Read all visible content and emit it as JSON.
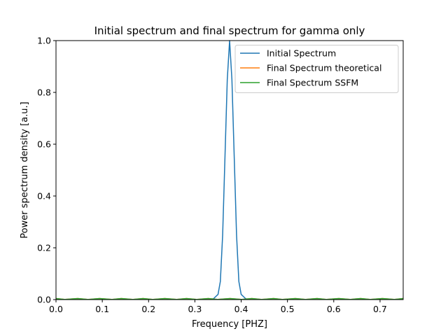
{
  "chart_data": {
    "type": "line",
    "title": "Initial spectrum and final spectrum for gamma only",
    "xlabel": "Frequency [PHZ]",
    "ylabel": "Power spectrum density [a.u.]",
    "xlim": [
      0.0,
      0.75
    ],
    "ylim": [
      0.0,
      1.0
    ],
    "xticks": [
      "0.0",
      "0.1",
      "0.2",
      "0.3",
      "0.4",
      "0.5",
      "0.6",
      "0.7"
    ],
    "yticks": [
      "0.0",
      "0.2",
      "0.4",
      "0.6",
      "0.8",
      "1.0"
    ],
    "grid": false,
    "legend_position": "top-right",
    "series": [
      {
        "name": "Initial Spectrum",
        "color": "#1f77b4",
        "x": [
          0.0,
          0.3,
          0.33,
          0.34,
          0.35,
          0.355,
          0.36,
          0.365,
          0.37,
          0.375,
          0.38,
          0.385,
          0.39,
          0.395,
          0.4,
          0.41,
          0.42,
          0.45,
          0.75
        ],
        "y": [
          0.0,
          0.0,
          0.0,
          0.003,
          0.02,
          0.07,
          0.25,
          0.55,
          0.85,
          1.0,
          0.85,
          0.55,
          0.25,
          0.07,
          0.02,
          0.003,
          0.0,
          0.0,
          0.0
        ]
      },
      {
        "name": "Final Spectrum theoretical",
        "color": "#ff7f0e",
        "x": [
          0.0,
          0.02,
          0.047,
          0.07,
          0.094,
          0.12,
          0.141,
          0.165,
          0.188,
          0.21,
          0.235,
          0.26,
          0.282,
          0.305,
          0.329,
          0.35,
          0.376,
          0.4,
          0.423,
          0.445,
          0.47,
          0.49,
          0.517,
          0.54,
          0.564,
          0.585,
          0.611,
          0.635,
          0.658,
          0.68,
          0.705,
          0.73,
          0.75
        ],
        "y": [
          0.004,
          0.0005,
          0.004,
          0.0005,
          0.004,
          0.0005,
          0.004,
          0.0005,
          0.004,
          0.0005,
          0.004,
          0.0005,
          0.004,
          0.0005,
          0.004,
          0.0005,
          0.004,
          0.0005,
          0.004,
          0.0005,
          0.004,
          0.0005,
          0.004,
          0.0005,
          0.004,
          0.0005,
          0.004,
          0.0005,
          0.004,
          0.0005,
          0.004,
          0.0005,
          0.004
        ]
      },
      {
        "name": "Final Spectrum SSFM",
        "color": "#2ca02c",
        "x": [
          0.0,
          0.02,
          0.047,
          0.07,
          0.094,
          0.12,
          0.141,
          0.165,
          0.188,
          0.21,
          0.235,
          0.26,
          0.282,
          0.305,
          0.329,
          0.35,
          0.376,
          0.4,
          0.423,
          0.445,
          0.47,
          0.49,
          0.517,
          0.54,
          0.564,
          0.585,
          0.611,
          0.635,
          0.658,
          0.68,
          0.705,
          0.73,
          0.75
        ],
        "y": [
          0.004,
          0.0005,
          0.004,
          0.0005,
          0.004,
          0.0005,
          0.004,
          0.0005,
          0.004,
          0.0005,
          0.004,
          0.0005,
          0.004,
          0.0005,
          0.004,
          0.0005,
          0.004,
          0.0005,
          0.004,
          0.0005,
          0.004,
          0.0005,
          0.004,
          0.0005,
          0.004,
          0.0005,
          0.004,
          0.0005,
          0.004,
          0.0005,
          0.004,
          0.0005,
          0.004
        ]
      }
    ]
  }
}
